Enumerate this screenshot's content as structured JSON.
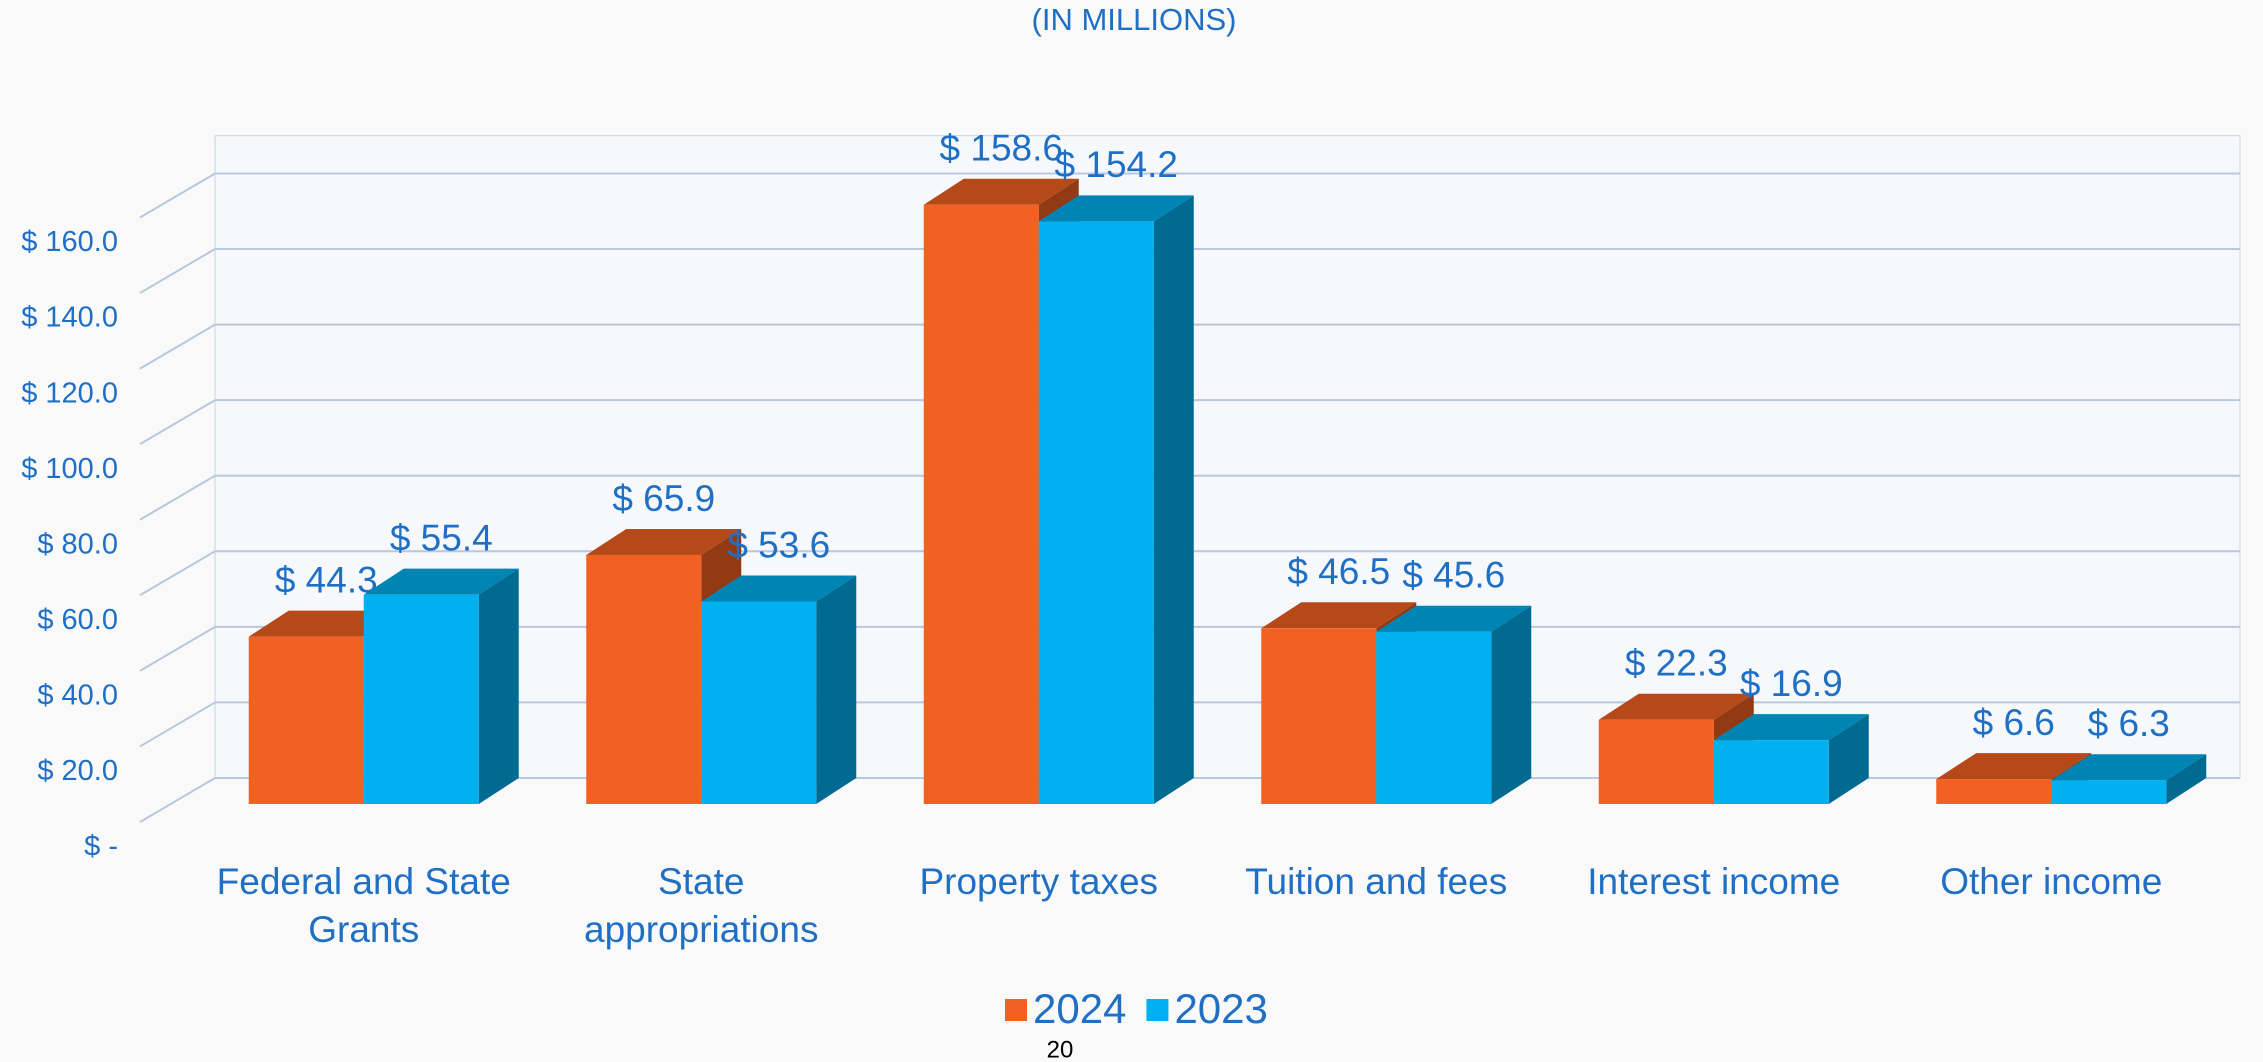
{
  "chart_data": {
    "type": "bar3d",
    "title": "(IN MILLIONS)",
    "page_number": "20",
    "categories": [
      "Federal and State Grants",
      "State appropriations",
      "Property taxes",
      "Tuition and fees",
      "Interest income",
      "Other income"
    ],
    "series": [
      {
        "name": "2024",
        "color": "#f26122",
        "values": [
          44.3,
          65.9,
          158.6,
          46.5,
          22.3,
          6.6
        ],
        "value_labels": [
          "$ 44.3",
          "$ 65.9",
          "$ 158.6",
          "$ 46.5",
          "$ 22.3",
          "$ 6.6"
        ]
      },
      {
        "name": "2023",
        "color": "#00b0f0",
        "values": [
          55.4,
          53.6,
          154.2,
          45.6,
          16.9,
          6.3
        ],
        "value_labels": [
          "$ 55.4",
          "$ 53.6",
          "$ 154.2",
          "$ 45.6",
          "$ 16.9",
          "$ 6.3"
        ]
      }
    ],
    "ylim": [
      0,
      170
    ],
    "yticks": [
      {
        "value": 0,
        "label": "$ -"
      },
      {
        "value": 20,
        "label": "$ 20.0"
      },
      {
        "value": 40,
        "label": "$ 40.0"
      },
      {
        "value": 60,
        "label": "$ 60.0"
      },
      {
        "value": 80,
        "label": "$ 80.0"
      },
      {
        "value": 100,
        "label": "$ 100.0"
      },
      {
        "value": 120,
        "label": "$ 120.0"
      },
      {
        "value": 140,
        "label": "$ 140.0"
      },
      {
        "value": 160,
        "label": "$ 160.0"
      }
    ],
    "grid": true,
    "legend": "bottom"
  }
}
